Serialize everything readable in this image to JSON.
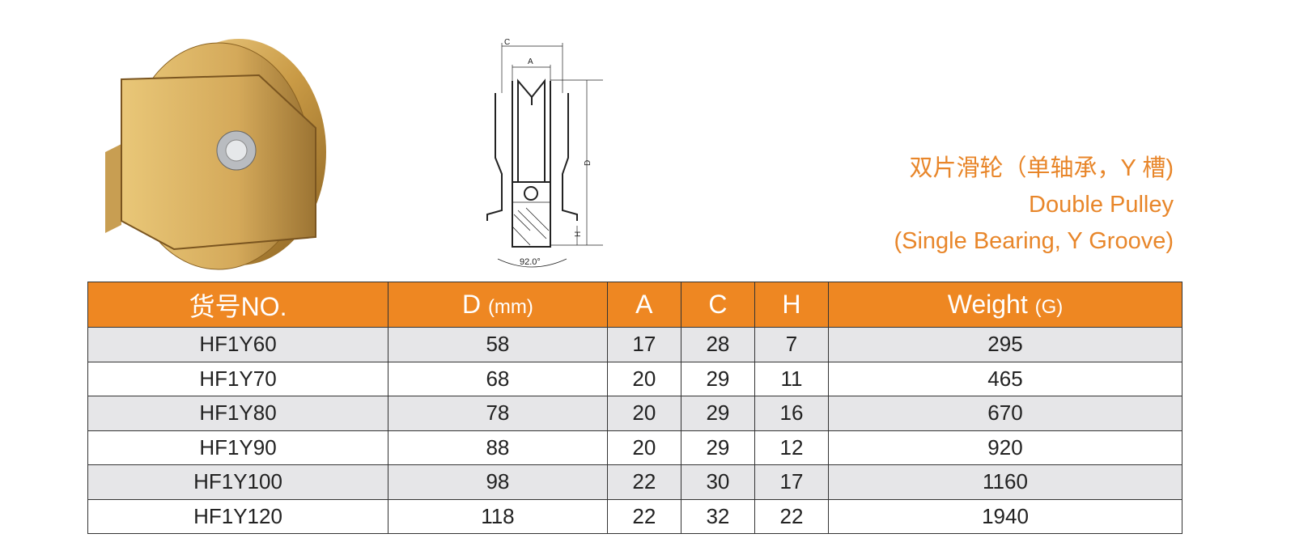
{
  "title": {
    "chinese": "双片滑轮（单轴承，Y 槽)",
    "english_line1": "Double Pulley",
    "english_line2": "(Single Bearing, Y Groove)"
  },
  "diagram": {
    "label_c": "C",
    "label_a": "A",
    "label_d": "D",
    "label_h": "H",
    "angle": "92.0°"
  },
  "table": {
    "headers": [
      {
        "main": "货号NO.",
        "unit": ""
      },
      {
        "main": "D ",
        "unit": "(mm)"
      },
      {
        "main": "A",
        "unit": ""
      },
      {
        "main": "C",
        "unit": ""
      },
      {
        "main": "H",
        "unit": ""
      },
      {
        "main": "Weight ",
        "unit": "(G)"
      }
    ],
    "rows": [
      [
        "HF1Y60",
        "58",
        "17",
        "28",
        "7",
        "295"
      ],
      [
        "HF1Y70",
        "68",
        "20",
        "29",
        "11",
        "465"
      ],
      [
        "HF1Y80",
        "78",
        "20",
        "29",
        "16",
        "670"
      ],
      [
        "HF1Y90",
        "88",
        "20",
        "29",
        "12",
        "920"
      ],
      [
        "HF1Y100",
        "98",
        "22",
        "30",
        "17",
        "1160"
      ],
      [
        "HF1Y120",
        "118",
        "22",
        "32",
        "22",
        "1940"
      ]
    ]
  },
  "colors": {
    "accent": "#EE8722",
    "title": "#E8862A",
    "row_alt": "#E6E6E8"
  }
}
